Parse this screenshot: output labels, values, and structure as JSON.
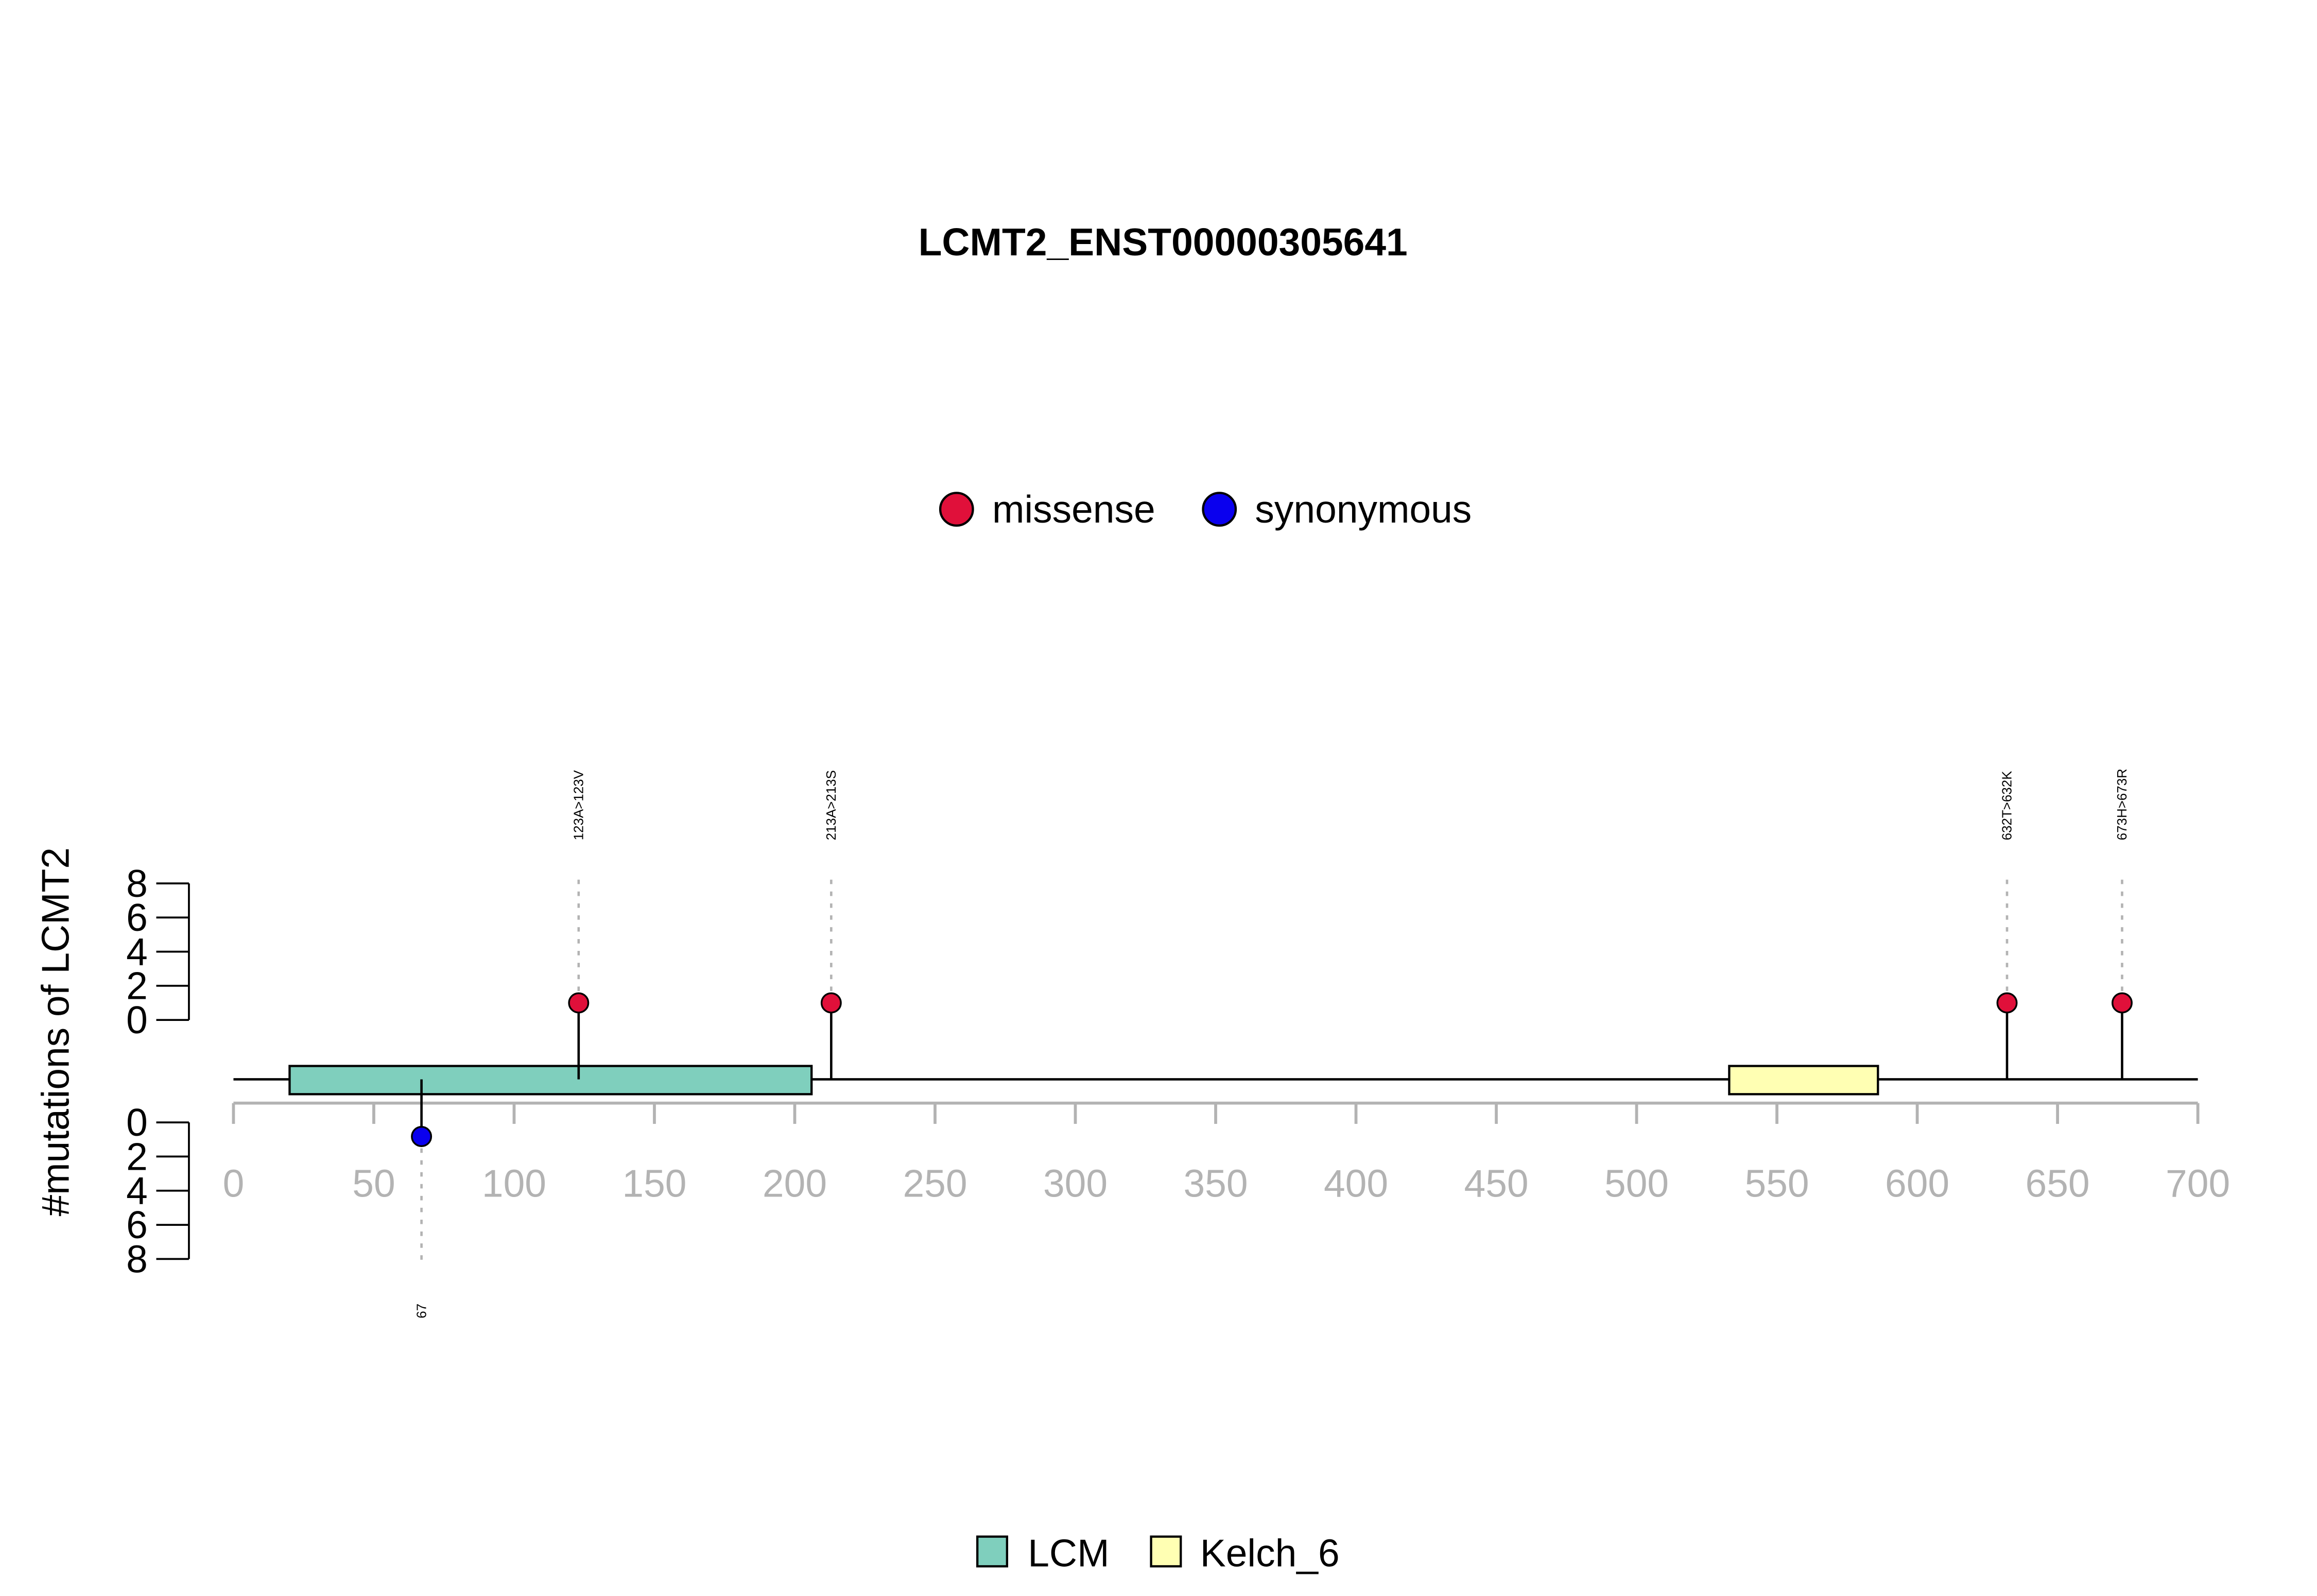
{
  "chart_data": {
    "type": "lollipop",
    "title": "LCMT2_ENST00000305641",
    "ylabel": "#mutations of LCMT2",
    "xlim": [
      0,
      700
    ],
    "x_ticks": [
      0,
      50,
      100,
      150,
      200,
      250,
      300,
      350,
      400,
      450,
      500,
      550,
      600,
      650,
      700
    ],
    "y_ticks": [
      0,
      2,
      4,
      6,
      8
    ],
    "ylim": [
      0,
      8
    ],
    "colors": {
      "missense": "#e0103a",
      "synonymous": "#0a00ee",
      "LCM": "#7fcfbd",
      "Kelch_6": "#ffffb3",
      "axis_grey": "#b3b3b3"
    },
    "legend_top": [
      {
        "key": "missense",
        "label": "missense"
      },
      {
        "key": "synonymous",
        "label": "synonymous"
      }
    ],
    "legend_bottom": [
      {
        "key": "LCM",
        "label": "LCM"
      },
      {
        "key": "Kelch_6",
        "label": "Kelch_6"
      }
    ],
    "domains": [
      {
        "name": "LCM",
        "start": 20,
        "end": 206
      },
      {
        "name": "Kelch_6",
        "start": 533,
        "end": 586
      }
    ],
    "mutations": [
      {
        "pos": 123,
        "count": 1,
        "type": "missense",
        "label": "123A>123V",
        "side": "top"
      },
      {
        "pos": 213,
        "count": 1,
        "type": "missense",
        "label": "213A>213S",
        "side": "top"
      },
      {
        "pos": 632,
        "count": 1,
        "type": "missense",
        "label": "632T>632K",
        "side": "top"
      },
      {
        "pos": 673,
        "count": 1,
        "type": "missense",
        "label": "673H>673R",
        "side": "top"
      },
      {
        "pos": 67,
        "count": 1,
        "type": "synonymous",
        "label": "67",
        "side": "bottom"
      }
    ]
  }
}
